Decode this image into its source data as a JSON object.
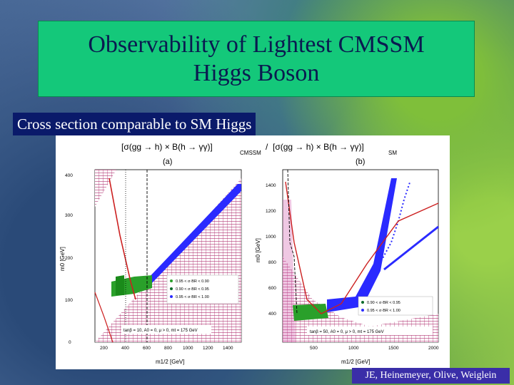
{
  "slide": {
    "title_line1": "Observability of Lightest CMSSM",
    "title_line2": "Higgs Boson",
    "subtitle": "Cross section comparable to SM Higgs",
    "credit": "JE, Heinemeyer, Olive, Weiglein"
  },
  "figure": {
    "formula_left": "[σ(gg → h) × B(h → γγ)]",
    "formula_left_sub": "CMSSM",
    "formula_slash": "/",
    "formula_right": "[σ(gg → h) × B(h → γγ)]",
    "formula_right_sub": "SM",
    "panel_a": {
      "label": "(a)",
      "xlabel": "m1/2 [GeV]",
      "ylabel": "m0 [GeV]",
      "x_ticks": [
        "200",
        "400",
        "600",
        "800",
        "1000",
        "1200",
        "1400"
      ],
      "y_ticks": [
        "0",
        "100",
        "200",
        "300",
        "400"
      ],
      "legend": [
        {
          "text": "0.95 < σ·BR < 0.90",
          "color": "#2aa02a"
        },
        {
          "text": "0.90 < σ·BR < 0.95",
          "color": "#0a6a2a"
        },
        {
          "text": "0.95 < σ·BR < 1.00",
          "color": "#2a2aff"
        }
      ],
      "caption": "tanβ = 10, A0 = 0, μ > 0, mt = 175 GeV"
    },
    "panel_b": {
      "label": "(b)",
      "xlabel": "m1/2 [GeV]",
      "ylabel": "m0 [GeV]",
      "x_ticks": [
        "500",
        "1000",
        "1500",
        "2000"
      ],
      "y_ticks": [
        "400",
        "600",
        "800",
        "1000",
        "1200",
        "1400"
      ],
      "legend": [
        {
          "text": "0.90 < σ·BR < 0.95",
          "color": "#0a6a2a"
        },
        {
          "text": "0.95 < σ·BR < 1.00",
          "color": "#2a2aff"
        }
      ],
      "caption": "tanβ = 50, A0 = 0, μ > 0, mt = 175 GeV"
    }
  },
  "colors": {
    "title_bg": "#14c87a",
    "subtitle_bg": "#0a1a6a",
    "credit_bg": "#3a2ea8",
    "excluded_region": "#b03070",
    "constraint_line": "#cc2020",
    "band_green": "#2aa02a",
    "band_blue": "#2a2aff"
  }
}
